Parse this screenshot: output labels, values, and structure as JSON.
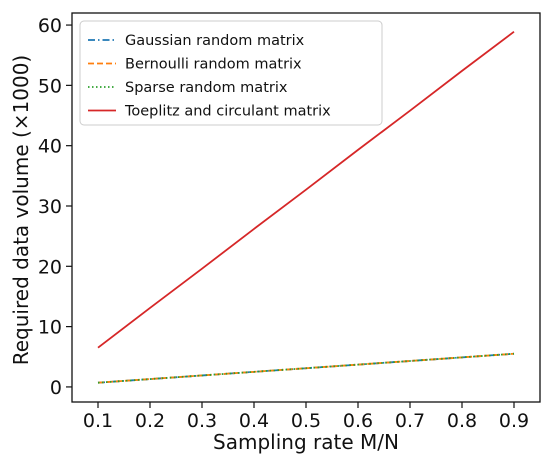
{
  "chart_data": {
    "type": "line",
    "xlabel": "Sampling rate M/N",
    "ylabel": "Required data volume (×1000)",
    "x": [
      0.1,
      0.2,
      0.3,
      0.4,
      0.5,
      0.6,
      0.7,
      0.8,
      0.9
    ],
    "xlim": [
      0.05,
      0.95
    ],
    "ylim": [
      -2.5,
      62
    ],
    "xticks": [
      "0.1",
      "0.2",
      "0.3",
      "0.4",
      "0.5",
      "0.6",
      "0.7",
      "0.8",
      "0.9"
    ],
    "yticks": [
      "0",
      "10",
      "20",
      "30",
      "40",
      "50",
      "60"
    ],
    "legend_position": "top-left",
    "grid": false,
    "series": [
      {
        "name": "Gaussian random matrix",
        "color": "#1f77b4",
        "dash": "dashdot",
        "values": [
          0.7,
          1.3,
          1.9,
          2.5,
          3.1,
          3.7,
          4.3,
          4.9,
          5.5
        ]
      },
      {
        "name": "Bernoulli random matrix",
        "color": "#ff7f0e",
        "dash": "dashed",
        "values": [
          0.7,
          1.3,
          1.9,
          2.5,
          3.1,
          3.7,
          4.3,
          4.9,
          5.5
        ]
      },
      {
        "name": "Sparse random matrix",
        "color": "#2ca02c",
        "dash": "dotted",
        "values": [
          0.7,
          1.3,
          1.9,
          2.5,
          3.1,
          3.7,
          4.3,
          4.9,
          5.5
        ]
      },
      {
        "name": "Toeplitz and circulant matrix",
        "color": "#d62728",
        "dash": "solid",
        "values": [
          6.5,
          13.1,
          19.6,
          26.2,
          32.7,
          39.3,
          45.8,
          52.4,
          58.9
        ]
      }
    ]
  }
}
